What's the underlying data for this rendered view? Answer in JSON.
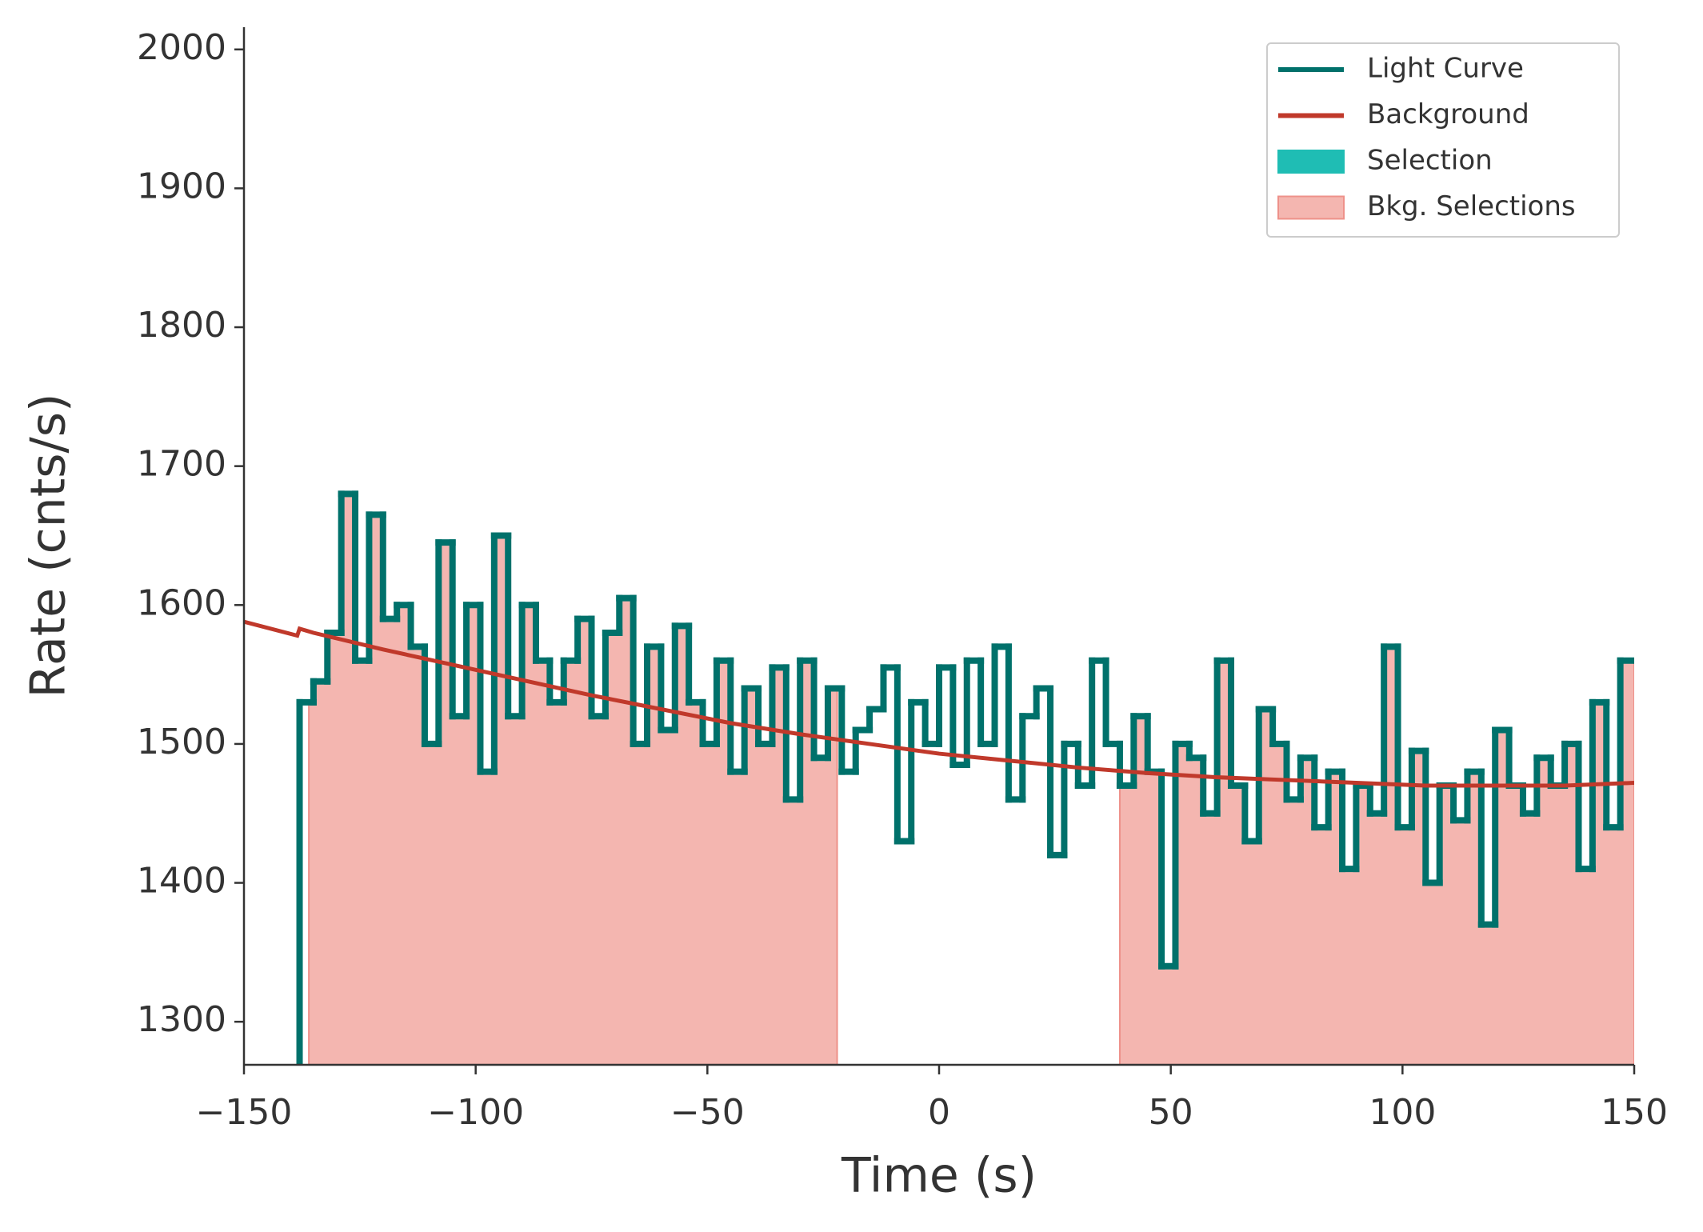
{
  "chart_data": {
    "type": "lightcurve",
    "xlabel": "Time (s)",
    "ylabel": "Rate (cnts/s)",
    "xlim": [
      -150,
      150
    ],
    "ylim": [
      1269,
      2016
    ],
    "xticks": [
      {
        "value": -150,
        "label": "−150"
      },
      {
        "value": -100,
        "label": "−100"
      },
      {
        "value": -50,
        "label": "−50"
      },
      0,
      50,
      100,
      150
    ],
    "yticks": [
      1300,
      1400,
      1500,
      1600,
      1700,
      1800,
      1900,
      2000
    ],
    "legend": "upper right",
    "series": [
      {
        "name": "Light Curve",
        "color": "#00716b",
        "bins": [
          -138,
          -135,
          -132,
          -129,
          -126,
          -123,
          -120,
          -117,
          -114,
          -111,
          -108,
          -105,
          -102,
          -99,
          -96,
          -93,
          -90,
          -87,
          -84,
          -81,
          -78,
          -75,
          -72,
          -69,
          -66,
          -63,
          -60,
          -57,
          -54,
          -51,
          -48,
          -45,
          -42,
          -39,
          -36,
          -33,
          -30,
          -27,
          -24,
          -21,
          -18,
          -15,
          -12,
          -9,
          -6,
          -3,
          0,
          3,
          6,
          9,
          12,
          15,
          18,
          21,
          24,
          27,
          30,
          33,
          36,
          39,
          42,
          45,
          48,
          51,
          54,
          57,
          60,
          63,
          66,
          69,
          72,
          75,
          78,
          81,
          84,
          87,
          90,
          93,
          96,
          99,
          102,
          105,
          108,
          111,
          114,
          117,
          120,
          123,
          126,
          129,
          132,
          135,
          138,
          141,
          144,
          147,
          150
        ],
        "values": [
          1530,
          1545,
          1580,
          1680,
          1560,
          1665,
          1590,
          1600,
          1570,
          1500,
          1645,
          1520,
          1600,
          1480,
          1650,
          1520,
          1600,
          1560,
          1530,
          1560,
          1590,
          1520,
          1580,
          1605,
          1500,
          1570,
          1510,
          1585,
          1530,
          1500,
          1560,
          1480,
          1540,
          1500,
          1555,
          1460,
          1560,
          1490,
          1540,
          1480,
          1510,
          1525,
          1555,
          1430,
          1530,
          1500,
          1555,
          1485,
          1560,
          1500,
          1570,
          1460,
          1520,
          1540,
          1420,
          1500,
          1470,
          1560,
          1500,
          1470,
          1520,
          1480,
          1340,
          1500,
          1490,
          1450,
          1560,
          1470,
          1430,
          1525,
          1500,
          1460,
          1490,
          1440,
          1480,
          1410,
          1470,
          1450,
          1570,
          1440,
          1495,
          1400,
          1470,
          1445,
          1480,
          1370,
          1510,
          1470,
          1450,
          1490,
          1470,
          1500,
          1410,
          1530,
          1440,
          1560
        ]
      },
      {
        "name": "Background",
        "color": "#c0392b",
        "x": [
          -150,
          -138.5,
          -138,
          -135,
          -120,
          -105,
          -90,
          -75,
          -60,
          -45,
          -30,
          -15,
          0,
          15,
          30,
          45,
          60,
          75,
          90,
          105,
          120,
          135,
          150
        ],
        "values": [
          1588,
          1578,
          1583,
          1580,
          1568,
          1557,
          1546,
          1535,
          1525,
          1515,
          1507,
          1500,
          1493,
          1488,
          1483,
          1479,
          1476,
          1474,
          1472,
          1470,
          1470,
          1470,
          1472
        ]
      }
    ],
    "selection": {
      "name": "Selection",
      "color": "#1fbdb4"
    },
    "bkg_selections": {
      "name": "Bkg. Selections",
      "color": "#f4b6b0",
      "edge_color": "#ee918a",
      "ranges": [
        [
          -136,
          -22
        ],
        [
          39,
          150
        ]
      ]
    }
  }
}
